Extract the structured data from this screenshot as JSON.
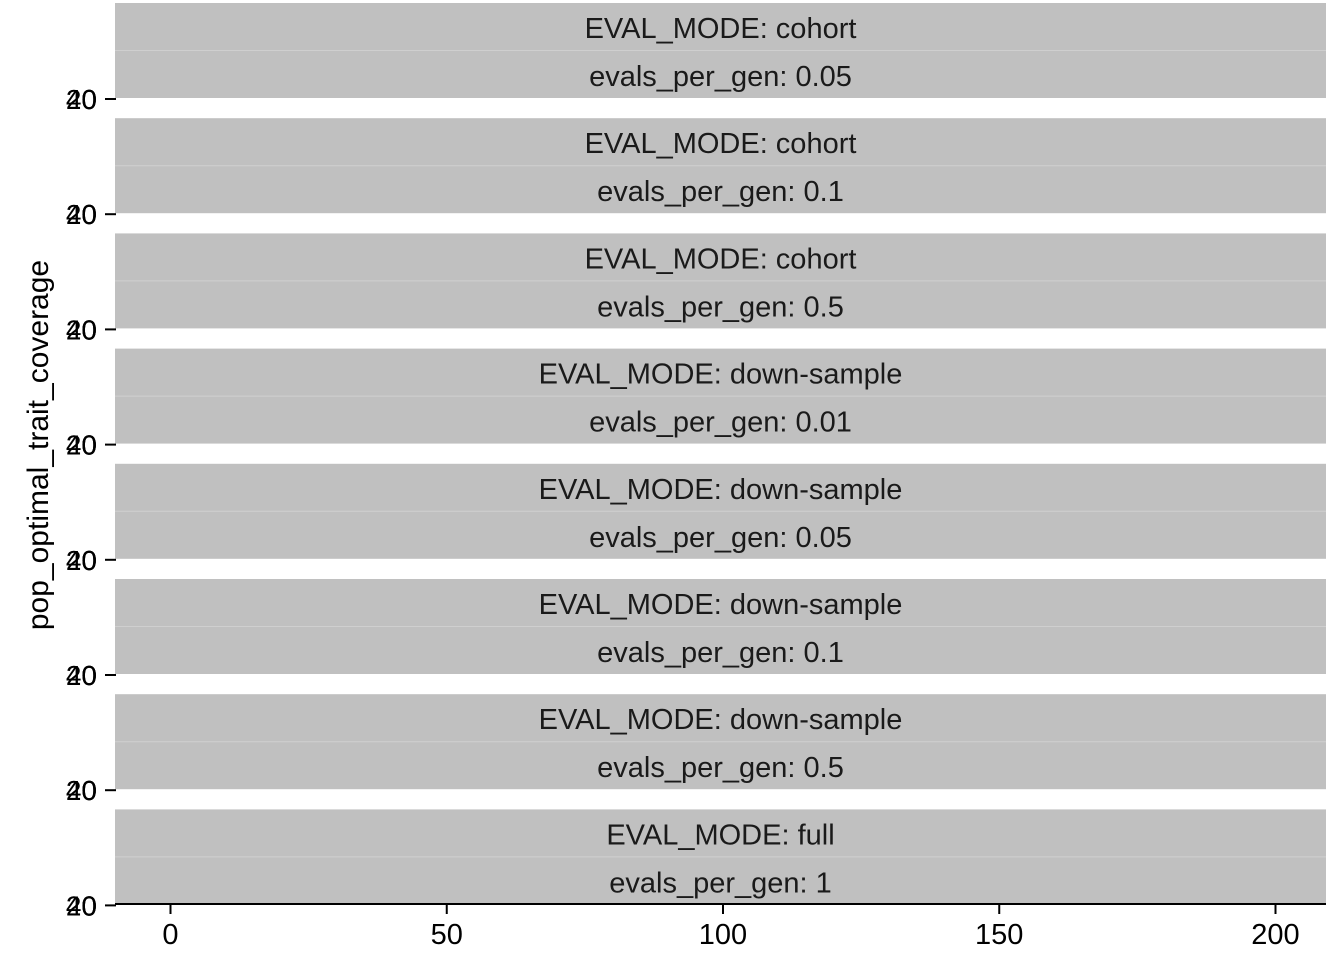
{
  "chart_data": {
    "type": "line",
    "xlabel": "",
    "ylabel": "pop_optimal_trait_coverage",
    "xlim": [
      0,
      200
    ],
    "x_ticks": [
      "0",
      "50",
      "100",
      "150",
      "200"
    ],
    "y_tick_labels": [
      "40",
      "20",
      "0"
    ],
    "strip_colors": {
      "fill": "#c0c0c0",
      "axis": "#000000"
    },
    "facets": [
      {
        "eval_mode": "EVAL_MODE: cohort",
        "evals_per_gen": "evals_per_gen: 0.05"
      },
      {
        "eval_mode": "EVAL_MODE: cohort",
        "evals_per_gen": "evals_per_gen: 0.1"
      },
      {
        "eval_mode": "EVAL_MODE: cohort",
        "evals_per_gen": "evals_per_gen: 0.5"
      },
      {
        "eval_mode": "EVAL_MODE: down-sample",
        "evals_per_gen": "evals_per_gen: 0.01"
      },
      {
        "eval_mode": "EVAL_MODE: down-sample",
        "evals_per_gen": "evals_per_gen: 0.05"
      },
      {
        "eval_mode": "EVAL_MODE: down-sample",
        "evals_per_gen": "evals_per_gen: 0.1"
      },
      {
        "eval_mode": "EVAL_MODE: down-sample",
        "evals_per_gen": "evals_per_gen: 0.5"
      },
      {
        "eval_mode": "EVAL_MODE: full",
        "evals_per_gen": "evals_per_gen: 1"
      }
    ]
  }
}
